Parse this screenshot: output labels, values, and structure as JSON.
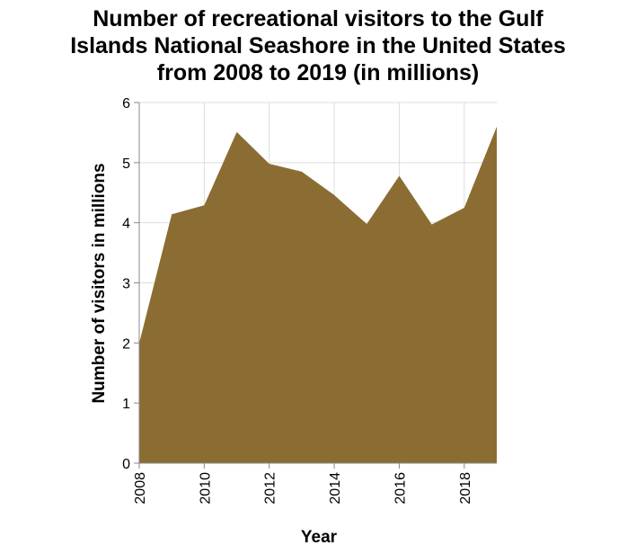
{
  "chart_data": {
    "type": "area",
    "title_lines": [
      "Number of recreational visitors to the Gulf",
      "Islands National Seashore in the United States",
      "from 2008 to 2019 (in millions)"
    ],
    "xlabel": "Year",
    "ylabel": "Number of visitors in millions",
    "xlim": [
      2008,
      2019
    ],
    "ylim": [
      0,
      6
    ],
    "x_ticks": [
      2008,
      2010,
      2012,
      2014,
      2016,
      2018
    ],
    "y_ticks": [
      0,
      1,
      2,
      3,
      4,
      5,
      6
    ],
    "grid": true,
    "series": [
      {
        "color": "#8b6d33",
        "x": [
          2008,
          2009,
          2010,
          2011,
          2012,
          2013,
          2014,
          2015,
          2016,
          2017,
          2018,
          2019
        ],
        "values": [
          2.0,
          4.14,
          4.29,
          5.51,
          4.98,
          4.85,
          4.46,
          3.98,
          4.78,
          3.97,
          4.25,
          5.6
        ]
      }
    ]
  }
}
